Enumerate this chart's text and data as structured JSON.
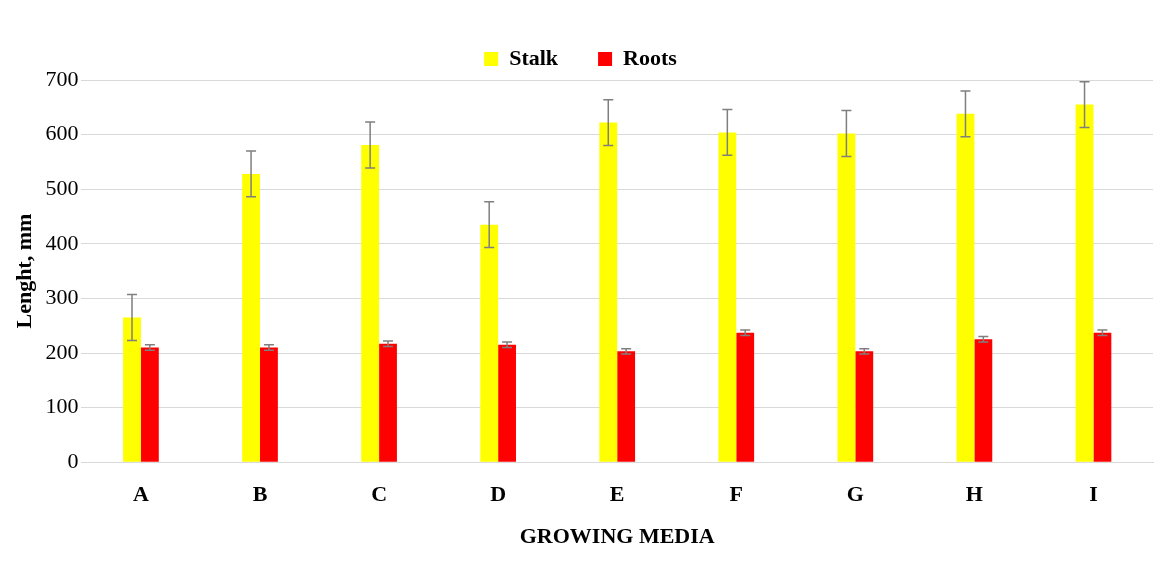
{
  "chart_data": {
    "type": "bar",
    "xlabel": "GROWING MEDIA",
    "ylabel": "Lenght, mm",
    "categories": [
      "A",
      "B",
      "C",
      "D",
      "E",
      "F",
      "G",
      "H",
      "I"
    ],
    "series": [
      {
        "name": "Stalk",
        "color": "#ffff00",
        "values": [
          265,
          528,
          581,
          435,
          622,
          604,
          602,
          638,
          655
        ],
        "errors": [
          42,
          42,
          42,
          42,
          42,
          42,
          42,
          42,
          42
        ]
      },
      {
        "name": "Roots",
        "color": "#ff0000",
        "values": [
          210,
          210,
          217,
          215,
          203,
          237,
          203,
          225,
          237
        ],
        "errors": [
          5,
          5,
          5,
          5,
          5,
          5,
          5,
          5,
          5
        ]
      }
    ],
    "ylim": [
      0,
      700
    ],
    "yticks": [
      0,
      100,
      200,
      300,
      400,
      500,
      600,
      700
    ],
    "grid": "y",
    "legend": "top"
  }
}
